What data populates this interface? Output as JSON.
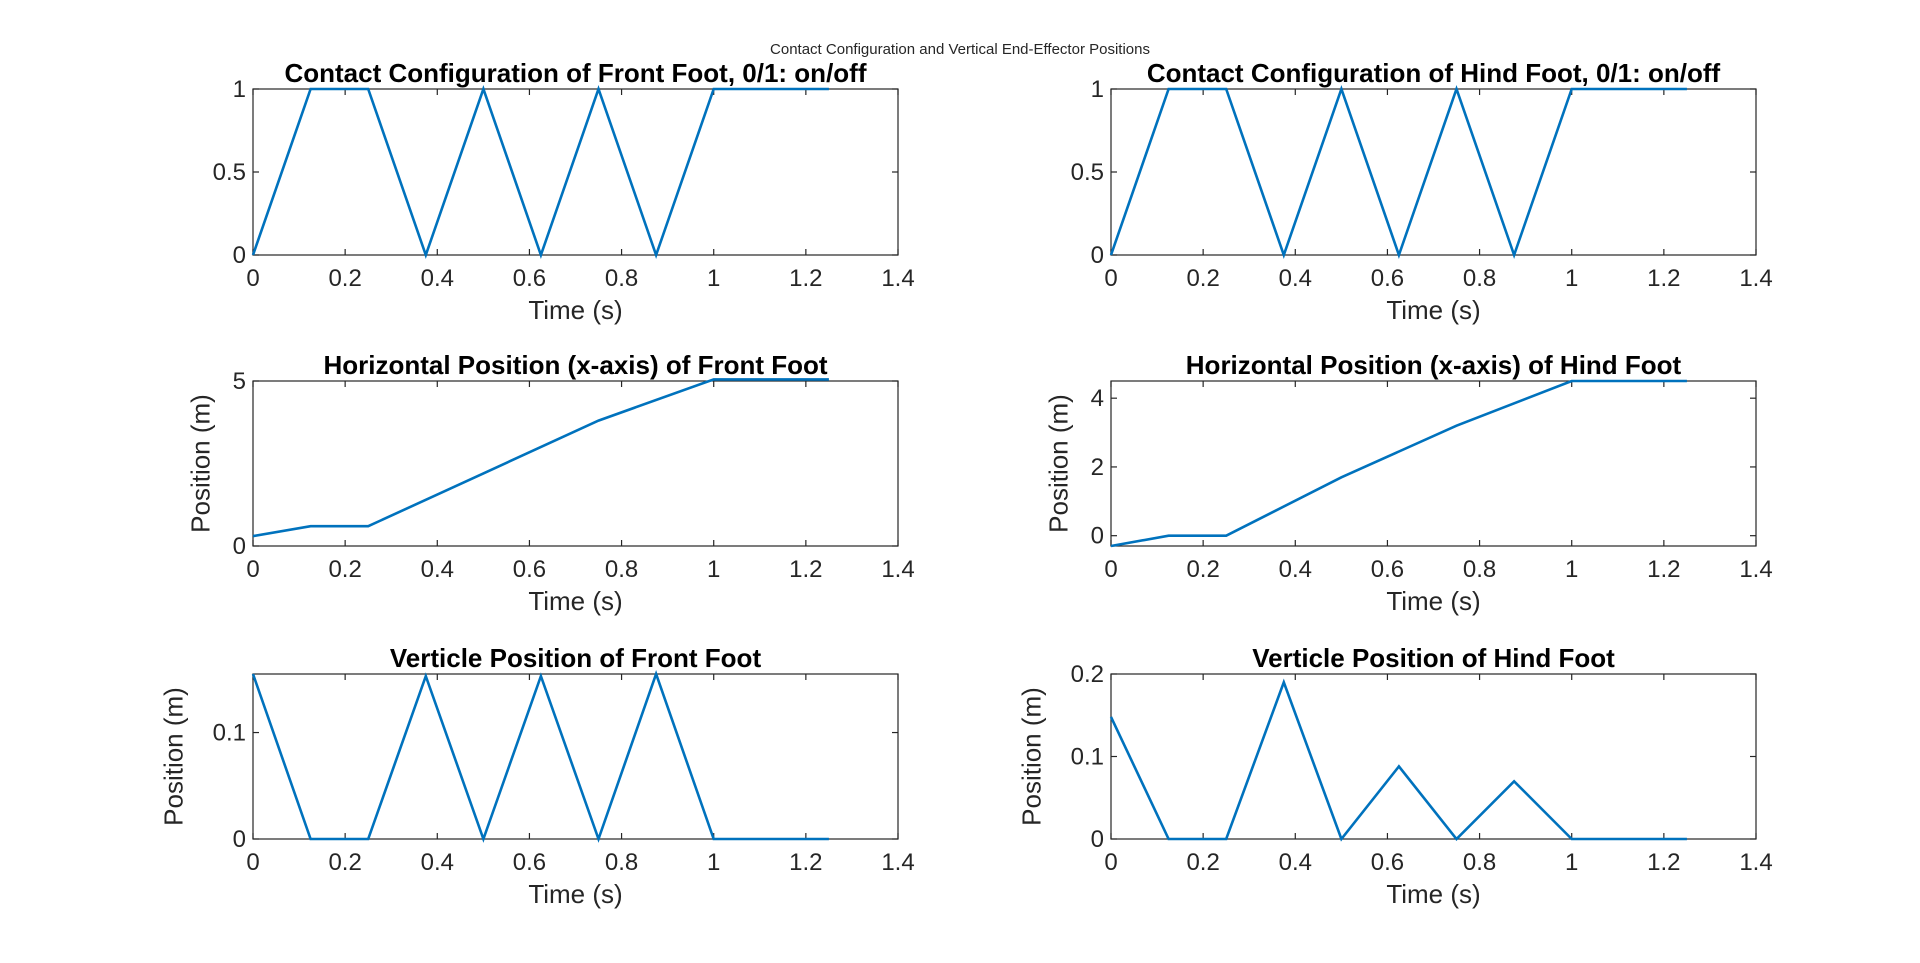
{
  "figure_title": "Contact Configuration and Vertical End-Effector Positions",
  "colors": {
    "line": "#0072BD",
    "axes": "#262626",
    "background": "#FFFFFF"
  },
  "chart_data": [
    {
      "type": "line",
      "title": "Contact Configuration of Front Foot, 0/1: on/off",
      "xlabel": "Time (s)",
      "ylabel": "",
      "xlim": [
        0,
        1.4
      ],
      "ylim": [
        0,
        1
      ],
      "xticks": [
        0,
        0.2,
        0.4,
        0.6,
        0.8,
        1,
        1.2,
        1.4
      ],
      "yticks": [
        0,
        0.5,
        1
      ],
      "series": [
        {
          "x": [
            0,
            0.125,
            0.25,
            0.375,
            0.5,
            0.625,
            0.75,
            0.875,
            1,
            1.125,
            1.25
          ],
          "y": [
            0,
            1,
            1,
            0,
            1,
            0,
            1,
            0,
            1,
            1,
            1
          ]
        }
      ]
    },
    {
      "type": "line",
      "title": "Contact Configuration of Hind Foot, 0/1: on/off",
      "xlabel": "Time (s)",
      "ylabel": "",
      "xlim": [
        0,
        1.4
      ],
      "ylim": [
        0,
        1
      ],
      "xticks": [
        0,
        0.2,
        0.4,
        0.6,
        0.8,
        1,
        1.2,
        1.4
      ],
      "yticks": [
        0,
        0.5,
        1
      ],
      "series": [
        {
          "x": [
            0,
            0.125,
            0.25,
            0.375,
            0.5,
            0.625,
            0.75,
            0.875,
            1,
            1.125,
            1.25
          ],
          "y": [
            0,
            1,
            1,
            0,
            1,
            0,
            1,
            0,
            1,
            1,
            1
          ]
        }
      ]
    },
    {
      "type": "line",
      "title": "Horizontal Position (x-axis) of Front Foot",
      "xlabel": "Time (s)",
      "ylabel": "Position (m)",
      "xlim": [
        0,
        1.4
      ],
      "ylim": [
        0,
        5
      ],
      "xticks": [
        0,
        0.2,
        0.4,
        0.6,
        0.8,
        1,
        1.2,
        1.4
      ],
      "yticks": [
        0,
        5
      ],
      "series": [
        {
          "x": [
            0,
            0.125,
            0.25,
            0.5,
            0.75,
            1,
            1.25
          ],
          "y": [
            0.3,
            0.6,
            0.6,
            2.2,
            3.8,
            5.05,
            5.05
          ]
        }
      ]
    },
    {
      "type": "line",
      "title": "Horizontal Position (x-axis) of Hind Foot",
      "xlabel": "Time (s)",
      "ylabel": "Position (m)",
      "xlim": [
        0,
        1.4
      ],
      "ylim": [
        -0.3,
        4.5
      ],
      "xticks": [
        0,
        0.2,
        0.4,
        0.6,
        0.8,
        1,
        1.2,
        1.4
      ],
      "yticks": [
        0,
        2,
        4
      ],
      "series": [
        {
          "x": [
            0,
            0.125,
            0.25,
            0.5,
            0.75,
            1,
            1.25
          ],
          "y": [
            -0.3,
            0,
            0,
            1.7,
            3.2,
            4.5,
            4.5
          ]
        }
      ]
    },
    {
      "type": "line",
      "title": "Verticle Position of Front Foot",
      "xlabel": "Time (s)",
      "ylabel": "Position (m)",
      "xlim": [
        0,
        1.4
      ],
      "ylim": [
        0,
        0.155
      ],
      "xticks": [
        0,
        0.2,
        0.4,
        0.6,
        0.8,
        1,
        1.2,
        1.4
      ],
      "yticks": [
        0,
        0.1
      ],
      "series": [
        {
          "x": [
            0,
            0.125,
            0.25,
            0.375,
            0.5,
            0.625,
            0.75,
            0.875,
            1,
            1.125,
            1.25
          ],
          "y": [
            0.155,
            0,
            0,
            0.153,
            0,
            0.153,
            0,
            0.155,
            0,
            0,
            0
          ]
        }
      ]
    },
    {
      "type": "line",
      "title": "Verticle Position of Hind Foot",
      "xlabel": "Time (s)",
      "ylabel": "Position (m)",
      "xlim": [
        0,
        1.4
      ],
      "ylim": [
        0,
        0.2
      ],
      "xticks": [
        0,
        0.2,
        0.4,
        0.6,
        0.8,
        1,
        1.2,
        1.4
      ],
      "yticks": [
        0,
        0.1,
        0.2
      ],
      "series": [
        {
          "x": [
            0,
            0.125,
            0.25,
            0.375,
            0.5,
            0.625,
            0.75,
            0.875,
            1,
            1.125,
            1.25
          ],
          "y": [
            0.148,
            0,
            0,
            0.19,
            0,
            0.088,
            0,
            0.07,
            0,
            0,
            0
          ]
        }
      ]
    }
  ]
}
